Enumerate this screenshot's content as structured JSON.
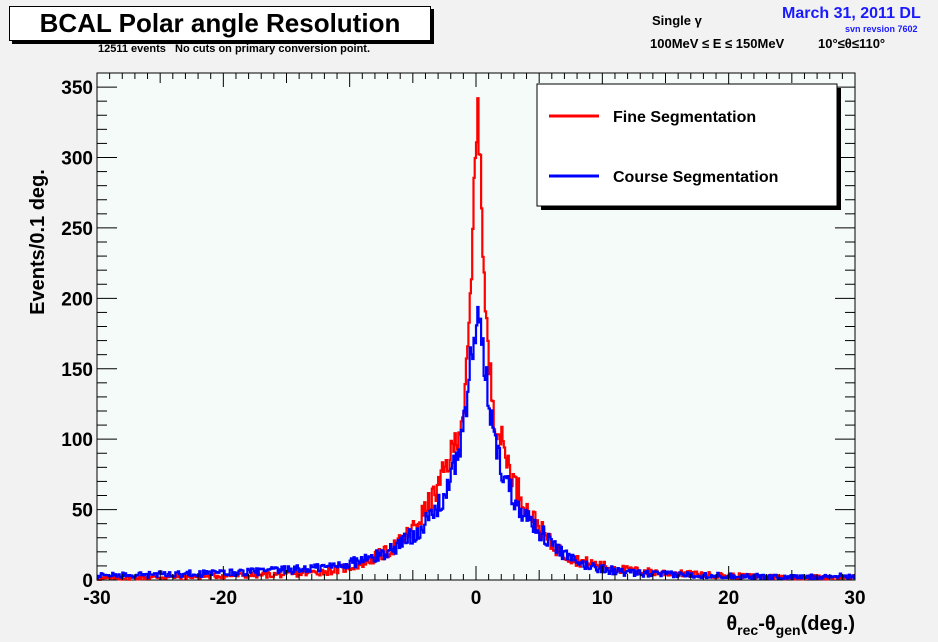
{
  "header": {
    "title": "BCAL Polar angle Resolution",
    "subtitle": "12511 events   No cuts on primary conversion point.",
    "particle": "Single γ",
    "energy_range": "100MeV ≤ E ≤ 150MeV",
    "theta_range": "10°≤θ≤110°",
    "date_label": "March 31, 2011 DL",
    "svn_label": "svn revsion 7602"
  },
  "colors": {
    "fine": "#ff0000",
    "course": "#0000ff",
    "plot_bg": "#f5fbf8",
    "page_bg": "#f2f2f2",
    "date_text": "#1a1aff"
  },
  "chart_data": {
    "type": "line",
    "title": "BCAL Polar angle Resolution",
    "xlabel": "θrec-θgen(deg.)",
    "ylabel": "Events/0.1 deg.",
    "xlim": [
      -30,
      30
    ],
    "ylim": [
      0,
      360
    ],
    "x_ticks": [
      -30,
      -20,
      -10,
      0,
      10,
      20,
      30
    ],
    "y_ticks": [
      0,
      50,
      100,
      150,
      200,
      250,
      300,
      350
    ],
    "grid": false,
    "legend_position": "top-right",
    "series": [
      {
        "name": "Fine Segmentation",
        "color": "#ff0000",
        "points": [
          [
            -30,
            1
          ],
          [
            -25,
            2
          ],
          [
            -20,
            3
          ],
          [
            -15,
            4
          ],
          [
            -12,
            6
          ],
          [
            -10,
            9
          ],
          [
            -8,
            16
          ],
          [
            -7,
            20
          ],
          [
            -6,
            27
          ],
          [
            -5,
            36
          ],
          [
            -4,
            50
          ],
          [
            -3,
            65
          ],
          [
            -2.5,
            78
          ],
          [
            -2,
            88
          ],
          [
            -1.5,
            102
          ],
          [
            -1,
            120
          ],
          [
            -0.7,
            150
          ],
          [
            -0.5,
            185
          ],
          [
            -0.3,
            225
          ],
          [
            -0.15,
            275
          ],
          [
            0,
            315
          ],
          [
            0.1,
            345
          ],
          [
            0.2,
            300
          ],
          [
            0.3,
            325
          ],
          [
            0.5,
            255
          ],
          [
            0.7,
            200
          ],
          [
            1,
            155
          ],
          [
            1.5,
            115
          ],
          [
            2,
            100
          ],
          [
            2.5,
            85
          ],
          [
            3,
            70
          ],
          [
            3.5,
            62
          ],
          [
            4,
            50
          ],
          [
            5,
            38
          ],
          [
            6,
            25
          ],
          [
            7,
            18
          ],
          [
            8,
            14
          ],
          [
            10,
            10
          ],
          [
            12,
            7
          ],
          [
            15,
            5
          ],
          [
            20,
            3
          ],
          [
            25,
            2
          ],
          [
            30,
            2
          ]
        ]
      },
      {
        "name": "Course Segmentation",
        "color": "#0000ff",
        "points": [
          [
            -30,
            3
          ],
          [
            -25,
            4
          ],
          [
            -20,
            5
          ],
          [
            -15,
            7
          ],
          [
            -12,
            9
          ],
          [
            -10,
            12
          ],
          [
            -8,
            16
          ],
          [
            -7,
            20
          ],
          [
            -6,
            26
          ],
          [
            -5,
            32
          ],
          [
            -4,
            40
          ],
          [
            -3,
            52
          ],
          [
            -2.5,
            60
          ],
          [
            -2,
            70
          ],
          [
            -1.5,
            88
          ],
          [
            -1,
            108
          ],
          [
            -0.7,
            125
          ],
          [
            -0.5,
            150
          ],
          [
            -0.3,
            165
          ],
          [
            -0.15,
            175
          ],
          [
            0,
            178
          ],
          [
            0.1,
            160
          ],
          [
            0.2,
            200
          ],
          [
            0.3,
            175
          ],
          [
            0.5,
            165
          ],
          [
            0.7,
            150
          ],
          [
            1,
            128
          ],
          [
            1.5,
            100
          ],
          [
            2,
            80
          ],
          [
            2.5,
            70
          ],
          [
            3,
            58
          ],
          [
            3.5,
            52
          ],
          [
            4,
            45
          ],
          [
            5,
            35
          ],
          [
            6,
            26
          ],
          [
            7,
            18
          ],
          [
            8,
            12
          ],
          [
            10,
            8
          ],
          [
            12,
            5
          ],
          [
            15,
            4
          ],
          [
            20,
            3
          ],
          [
            25,
            2
          ],
          [
            30,
            3
          ]
        ]
      }
    ]
  }
}
